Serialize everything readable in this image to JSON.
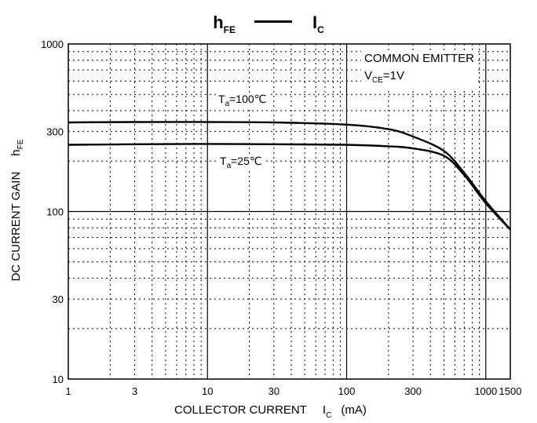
{
  "chart_data": {
    "type": "line",
    "title": {
      "main": "h",
      "main_sub": "FE",
      "secondary": "I",
      "secondary_sub": "C"
    },
    "xlabel": {
      "text": "COLLECTOR CURRENT",
      "symbol": "I",
      "symbol_sub": "C",
      "unit": "(mA)"
    },
    "ylabel": {
      "text": "DC CURRENT GAIN",
      "symbol": "h",
      "symbol_sub": "FE"
    },
    "x_scale": "log",
    "y_scale": "log",
    "xlim": [
      1,
      1500
    ],
    "ylim": [
      10,
      1000
    ],
    "x_ticks": [
      1,
      3,
      10,
      30,
      100,
      300,
      1000,
      1500
    ],
    "x_tick_labels": [
      "1",
      "3",
      "10",
      "30",
      "100",
      "300",
      "1000",
      "1500"
    ],
    "y_ticks": [
      10,
      30,
      100,
      300,
      1000
    ],
    "y_tick_labels": [
      "10",
      "30",
      "100",
      "300",
      "1000"
    ],
    "grid": true,
    "conditions": {
      "line1": "COMMON EMITTER",
      "line2_main": "V",
      "line2_sub": "CE",
      "line2_rest": "=1V"
    },
    "series": [
      {
        "label_main": "T",
        "label_sub": "a",
        "label_rest": "=100℃",
        "x": [
          1,
          3,
          10,
          30,
          100,
          200,
          300,
          500,
          700,
          1000,
          1500
        ],
        "y": [
          340,
          342,
          342,
          340,
          330,
          310,
          280,
          230,
          170,
          115,
          78
        ]
      },
      {
        "label_main": "T",
        "label_sub": "a",
        "label_rest": "=25℃",
        "x": [
          1,
          3,
          10,
          30,
          100,
          200,
          300,
          500,
          700,
          1000,
          1500
        ],
        "y": [
          250,
          252,
          253,
          252,
          250,
          245,
          238,
          215,
          165,
          112,
          78
        ]
      }
    ]
  }
}
